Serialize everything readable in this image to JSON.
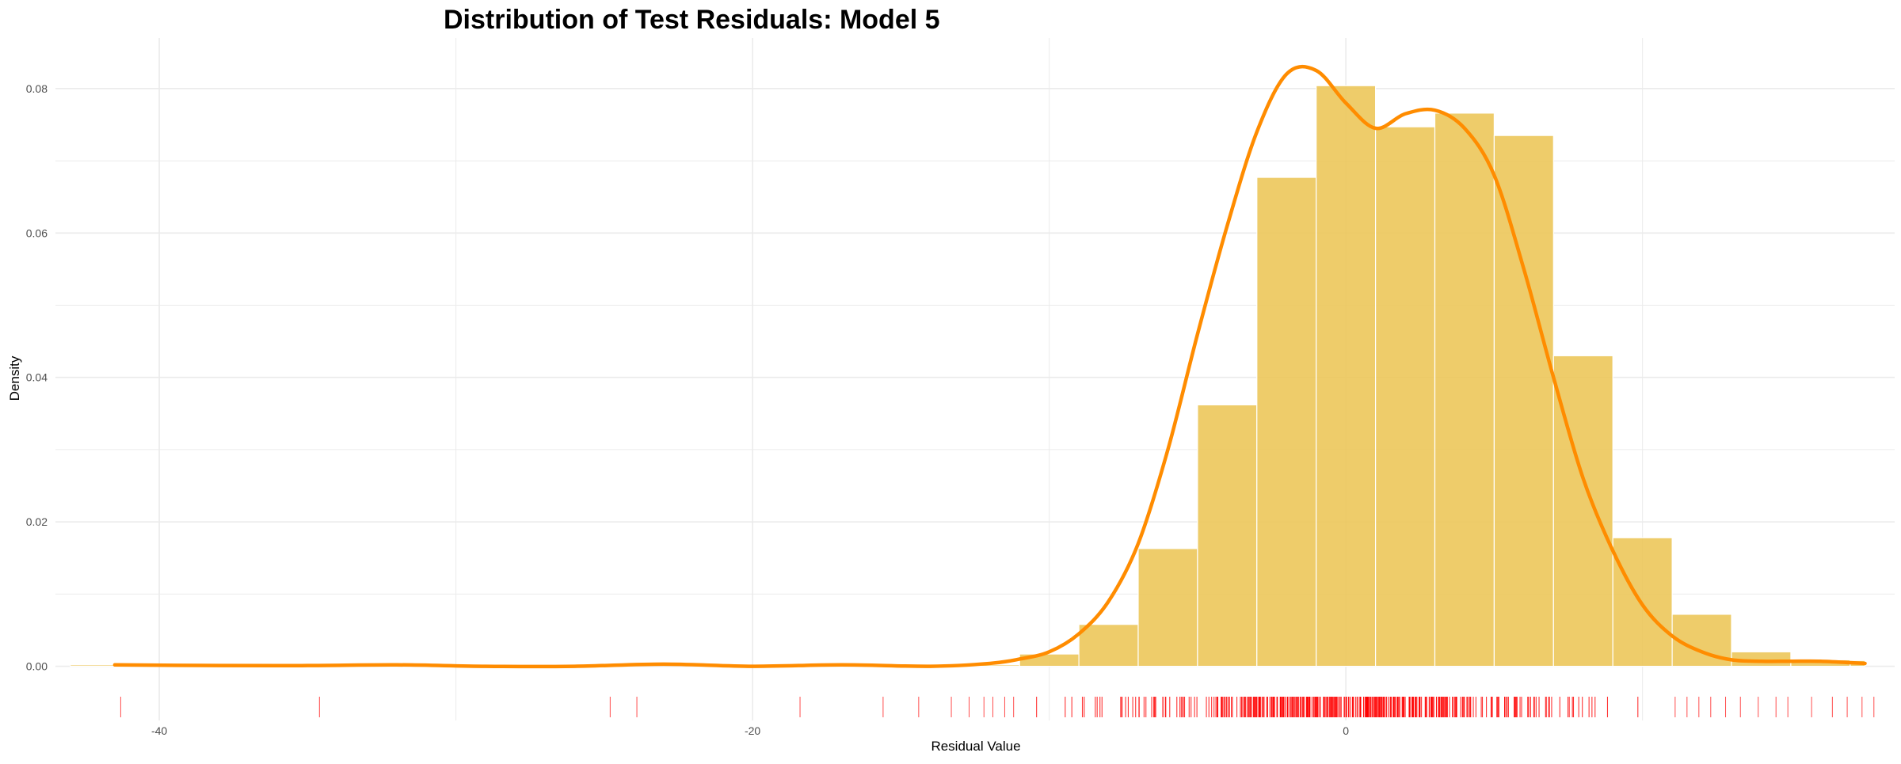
{
  "chart_data": {
    "type": "histogram",
    "title": "Distribution of Test Residuals: Model 5",
    "xlabel": "Residual Value",
    "ylabel": "Density",
    "xlim": [
      -43.5,
      18.5
    ],
    "ylim": [
      -0.0075,
      0.087
    ],
    "x_ticks": [
      -40,
      -20,
      0
    ],
    "x_tick_labels": [
      "-40",
      "-20",
      "0"
    ],
    "y_ticks": [
      0,
      0.02,
      0.04,
      0.06,
      0.08
    ],
    "y_tick_labels": [
      "0.00",
      "0.02",
      "0.04",
      "0.06",
      "0.08"
    ],
    "grid": true,
    "legend": "none",
    "bin_width": 2,
    "bins": [
      {
        "start": -43,
        "end": -41,
        "density": 0.0002
      },
      {
        "start": -13,
        "end": -11,
        "density": 0.0002
      },
      {
        "start": -11,
        "end": -9,
        "density": 0.0017
      },
      {
        "start": -9,
        "end": -7,
        "density": 0.0058
      },
      {
        "start": -7,
        "end": -5,
        "density": 0.0163
      },
      {
        "start": -5,
        "end": -3,
        "density": 0.0362
      },
      {
        "start": -3,
        "end": -1,
        "density": 0.0677
      },
      {
        "start": -1,
        "end": 1,
        "density": 0.0804
      },
      {
        "start": 1,
        "end": 3,
        "density": 0.0747
      },
      {
        "start": 3,
        "end": 5,
        "density": 0.0766
      },
      {
        "start": 5,
        "end": 7,
        "density": 0.0735
      },
      {
        "start": 7,
        "end": 9,
        "density": 0.043
      },
      {
        "start": 9,
        "end": 11,
        "density": 0.0178
      },
      {
        "start": 11,
        "end": 13,
        "density": 0.0072
      },
      {
        "start": 13,
        "end": 15,
        "density": 0.002
      },
      {
        "start": 15,
        "end": 17,
        "density": 0.0009
      },
      {
        "start": 17,
        "end": 17.5,
        "density": 0.0008
      }
    ],
    "density_curve": {
      "x": [
        -41.5,
        -38,
        -35,
        -32,
        -29,
        -26,
        -23,
        -20,
        -17,
        -14,
        -12,
        -11,
        -10,
        -9,
        -8,
        -7,
        -6,
        -5,
        -4,
        -3,
        -2,
        -1,
        0,
        1,
        2,
        3,
        4,
        5,
        6,
        7,
        8,
        9,
        10,
        11,
        12,
        13,
        14,
        15,
        16,
        17,
        17.5
      ],
      "y": [
        0.0002,
        0.0001,
        0.0001,
        0.0002,
        0.0,
        0.0,
        0.0003,
        0.0,
        0.0002,
        0.0,
        0.0004,
        0.001,
        0.002,
        0.0045,
        0.009,
        0.017,
        0.03,
        0.046,
        0.061,
        0.074,
        0.082,
        0.0825,
        0.078,
        0.0745,
        0.0765,
        0.077,
        0.0745,
        0.068,
        0.055,
        0.04,
        0.026,
        0.016,
        0.0085,
        0.0042,
        0.002,
        0.0009,
        0.0007,
        0.0007,
        0.0007,
        0.0005,
        0.0004
      ]
    },
    "rug": {
      "outliers": [
        -41.3,
        -34.6,
        -24.8,
        -23.9,
        -18.4,
        -15.6,
        -14.4,
        -13.3,
        -12.7,
        -12.2,
        -11.9,
        -11.5,
        -11.2,
        11.1,
        11.5,
        11.9,
        12.3,
        12.8,
        13.3,
        13.9,
        14.5,
        14.9,
        15.7,
        16.4,
        16.9,
        17.4,
        17.8
      ],
      "dense_range": [
        -11,
        11
      ]
    },
    "colors": {
      "bars": "#ecc65a",
      "curve": "#ff8c00",
      "rug": "#ff0000",
      "grid": "#ebebeb"
    }
  }
}
